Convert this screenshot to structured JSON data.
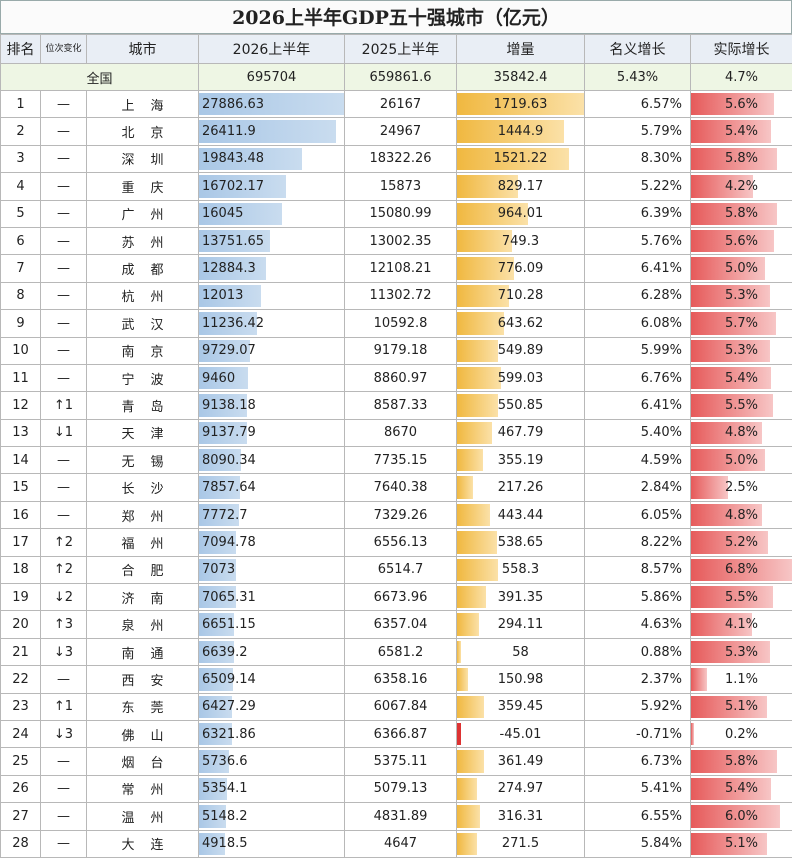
{
  "title": "2026上半年GDP五十强城市（亿元）",
  "headers": {
    "rank": "排名",
    "change": "位次变化",
    "city": "城市",
    "gdp2026": "2026上半年",
    "gdp2025": "2025上半年",
    "increase": "增量",
    "nominal": "名义增长",
    "real": "实际增长"
  },
  "total": {
    "label": "全国",
    "gdp2026": "695704",
    "gdp2025": "659861.6",
    "increase": "35842.4",
    "nominal": "5.43%",
    "real": "4.7%"
  },
  "rows": [
    {
      "rank": "1",
      "change": "—",
      "city": "上海",
      "gdp2026": "27886.63",
      "gdp2025": "26167",
      "increase": "1719.63",
      "nominal": "6.57%",
      "real": "5.6%"
    },
    {
      "rank": "2",
      "change": "—",
      "city": "北京",
      "gdp2026": "26411.9",
      "gdp2025": "24967",
      "increase": "1444.9",
      "nominal": "5.79%",
      "real": "5.4%"
    },
    {
      "rank": "3",
      "change": "—",
      "city": "深圳",
      "gdp2026": "19843.48",
      "gdp2025": "18322.26",
      "increase": "1521.22",
      "nominal": "8.30%",
      "real": "5.8%"
    },
    {
      "rank": "4",
      "change": "—",
      "city": "重庆",
      "gdp2026": "16702.17",
      "gdp2025": "15873",
      "increase": "829.17",
      "nominal": "5.22%",
      "real": "4.2%"
    },
    {
      "rank": "5",
      "change": "—",
      "city": "广州",
      "gdp2026": "16045",
      "gdp2025": "15080.99",
      "increase": "964.01",
      "nominal": "6.39%",
      "real": "5.8%"
    },
    {
      "rank": "6",
      "change": "—",
      "city": "苏州",
      "gdp2026": "13751.65",
      "gdp2025": "13002.35",
      "increase": "749.3",
      "nominal": "5.76%",
      "real": "5.6%"
    },
    {
      "rank": "7",
      "change": "—",
      "city": "成都",
      "gdp2026": "12884.3",
      "gdp2025": "12108.21",
      "increase": "776.09",
      "nominal": "6.41%",
      "real": "5.0%"
    },
    {
      "rank": "8",
      "change": "—",
      "city": "杭州",
      "gdp2026": "12013",
      "gdp2025": "11302.72",
      "increase": "710.28",
      "nominal": "6.28%",
      "real": "5.3%"
    },
    {
      "rank": "9",
      "change": "—",
      "city": "武汉",
      "gdp2026": "11236.42",
      "gdp2025": "10592.8",
      "increase": "643.62",
      "nominal": "6.08%",
      "real": "5.7%"
    },
    {
      "rank": "10",
      "change": "—",
      "city": "南京",
      "gdp2026": "9729.07",
      "gdp2025": "9179.18",
      "increase": "549.89",
      "nominal": "5.99%",
      "real": "5.3%"
    },
    {
      "rank": "11",
      "change": "—",
      "city": "宁波",
      "gdp2026": "9460",
      "gdp2025": "8860.97",
      "increase": "599.03",
      "nominal": "6.76%",
      "real": "5.4%"
    },
    {
      "rank": "12",
      "change": "↑1",
      "city": "青岛",
      "gdp2026": "9138.18",
      "gdp2025": "8587.33",
      "increase": "550.85",
      "nominal": "6.41%",
      "real": "5.5%"
    },
    {
      "rank": "13",
      "change": "↓1",
      "city": "天津",
      "gdp2026": "9137.79",
      "gdp2025": "8670",
      "increase": "467.79",
      "nominal": "5.40%",
      "real": "4.8%"
    },
    {
      "rank": "14",
      "change": "—",
      "city": "无锡",
      "gdp2026": "8090.34",
      "gdp2025": "7735.15",
      "increase": "355.19",
      "nominal": "4.59%",
      "real": "5.0%"
    },
    {
      "rank": "15",
      "change": "—",
      "city": "长沙",
      "gdp2026": "7857.64",
      "gdp2025": "7640.38",
      "increase": "217.26",
      "nominal": "2.84%",
      "real": "2.5%"
    },
    {
      "rank": "16",
      "change": "—",
      "city": "郑州",
      "gdp2026": "7772.7",
      "gdp2025": "7329.26",
      "increase": "443.44",
      "nominal": "6.05%",
      "real": "4.8%"
    },
    {
      "rank": "17",
      "change": "↑2",
      "city": "福州",
      "gdp2026": "7094.78",
      "gdp2025": "6556.13",
      "increase": "538.65",
      "nominal": "8.22%",
      "real": "5.2%"
    },
    {
      "rank": "18",
      "change": "↑2",
      "city": "合肥",
      "gdp2026": "7073",
      "gdp2025": "6514.7",
      "increase": "558.3",
      "nominal": "8.57%",
      "real": "6.8%"
    },
    {
      "rank": "19",
      "change": "↓2",
      "city": "济南",
      "gdp2026": "7065.31",
      "gdp2025": "6673.96",
      "increase": "391.35",
      "nominal": "5.86%",
      "real": "5.5%"
    },
    {
      "rank": "20",
      "change": "↑3",
      "city": "泉州",
      "gdp2026": "6651.15",
      "gdp2025": "6357.04",
      "increase": "294.11",
      "nominal": "4.63%",
      "real": "4.1%"
    },
    {
      "rank": "21",
      "change": "↓3",
      "city": "南通",
      "gdp2026": "6639.2",
      "gdp2025": "6581.2",
      "increase": "58",
      "nominal": "0.88%",
      "real": "5.3%"
    },
    {
      "rank": "22",
      "change": "—",
      "city": "西安",
      "gdp2026": "6509.14",
      "gdp2025": "6358.16",
      "increase": "150.98",
      "nominal": "2.37%",
      "real": "1.1%"
    },
    {
      "rank": "23",
      "change": "↑1",
      "city": "东莞",
      "gdp2026": "6427.29",
      "gdp2025": "6067.84",
      "increase": "359.45",
      "nominal": "5.92%",
      "real": "5.1%"
    },
    {
      "rank": "24",
      "change": "↓3",
      "city": "佛山",
      "gdp2026": "6321.86",
      "gdp2025": "6366.87",
      "increase": "-45.01",
      "nominal": "-0.71%",
      "real": "0.2%"
    },
    {
      "rank": "25",
      "change": "—",
      "city": "烟台",
      "gdp2026": "5736.6",
      "gdp2025": "5375.11",
      "increase": "361.49",
      "nominal": "6.73%",
      "real": "5.8%"
    },
    {
      "rank": "26",
      "change": "—",
      "city": "常州",
      "gdp2026": "5354.1",
      "gdp2025": "5079.13",
      "increase": "274.97",
      "nominal": "5.41%",
      "real": "5.4%"
    },
    {
      "rank": "27",
      "change": "—",
      "city": "温州",
      "gdp2026": "5148.2",
      "gdp2025": "4831.89",
      "increase": "316.31",
      "nominal": "6.55%",
      "real": "6.0%"
    },
    {
      "rank": "28",
      "change": "—",
      "city": "大连",
      "gdp2026": "4918.5",
      "gdp2025": "4647",
      "increase": "271.5",
      "nominal": "5.84%",
      "real": "5.1%"
    }
  ],
  "colors": {
    "gdp_bar": "#a9c7e6",
    "increase_bar": "#f0b840",
    "real_bar": "#e65a5a",
    "negative_bar": "#dd3333",
    "total_row": "#eef6e4"
  }
}
